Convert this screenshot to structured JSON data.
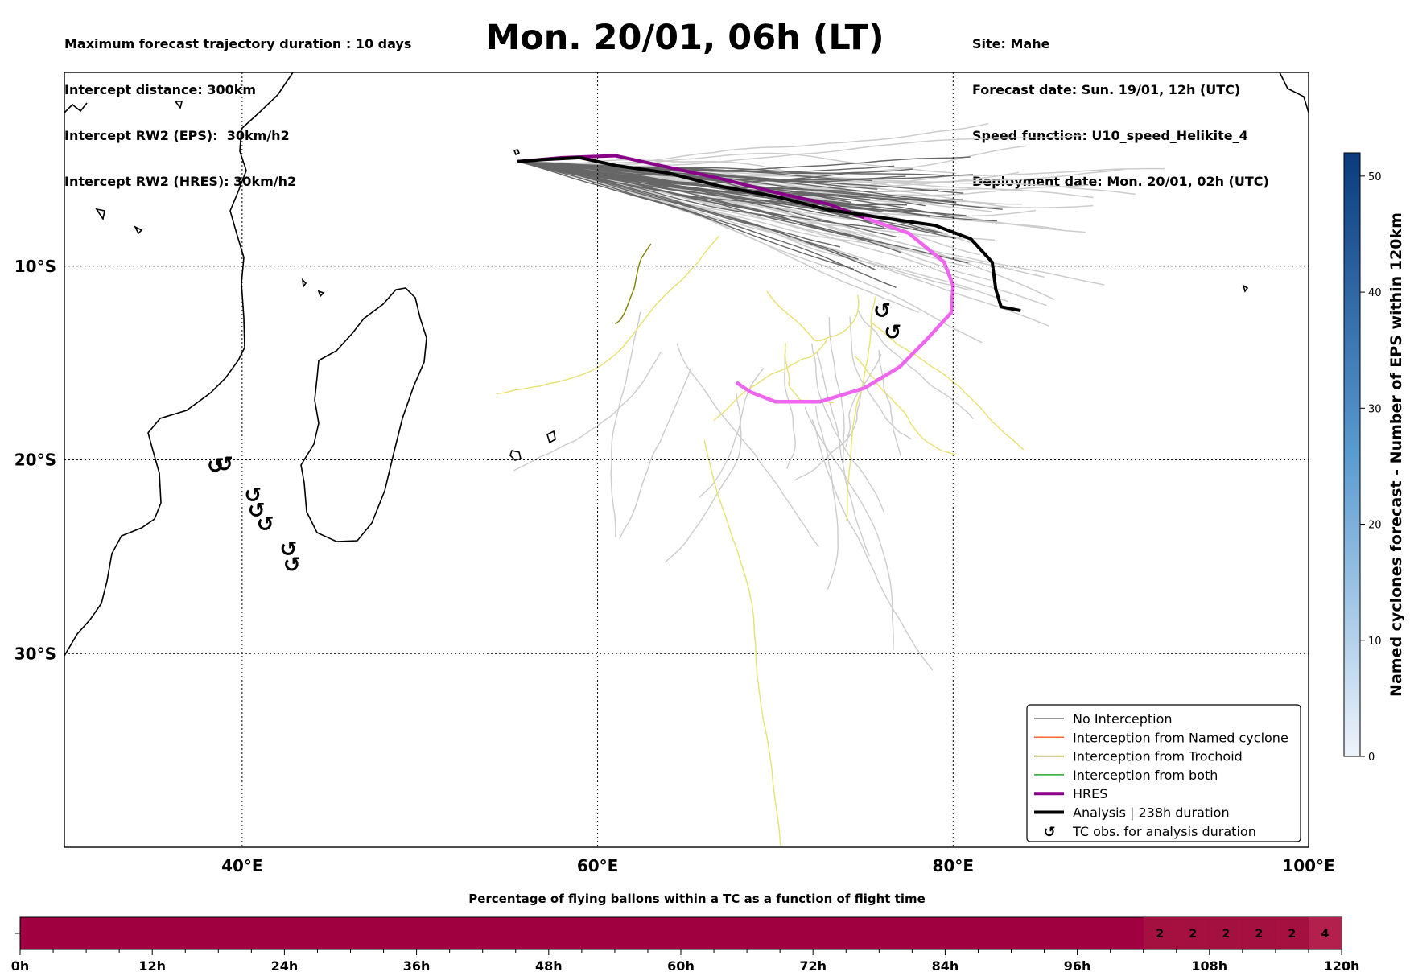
{
  "title": "Mon. 20/01, 06h (LT)",
  "header_left": [
    "Maximum forecast trajectory duration : 10 days",
    "Intercept distance: 300km",
    "Intercept RW2 (EPS):  30km/h2",
    "Intercept RW2 (HRES): 30km/h2"
  ],
  "header_right": [
    "Site: Mahe",
    "Forecast date: Sun. 19/01, 12h (UTC)",
    "Speed function: U10_speed_Helikite_4",
    "Deployment date: Mon. 20/01, 02h (UTC)"
  ],
  "map": {
    "extent": {
      "lon_min": 30,
      "lon_max": 100,
      "lat_max": 0,
      "lat_min": -40
    },
    "lon_ticks": [
      {
        "value": 40,
        "label": "40°E"
      },
      {
        "value": 60,
        "label": "60°E"
      },
      {
        "value": 80,
        "label": "80°E"
      },
      {
        "value": 100,
        "label": "100°E"
      }
    ],
    "lat_ticks": [
      {
        "value": -10,
        "label": "10°S"
      },
      {
        "value": -20,
        "label": "20°S"
      },
      {
        "value": -30,
        "label": "30°S"
      }
    ],
    "gridlines": true
  },
  "tracks": {
    "hres": {
      "color": "#880088",
      "points": [
        [
          55.5,
          -4.6
        ],
        [
          58,
          -4.4
        ],
        [
          61,
          -4.3
        ],
        [
          64,
          -4.9
        ],
        [
          67,
          -5.5
        ],
        [
          70,
          -6.2
        ],
        [
          73,
          -6.8
        ],
        [
          75,
          -7.5
        ]
      ]
    },
    "hres_late": {
      "color": "#ee66ee",
      "points": [
        [
          75,
          -7.5
        ],
        [
          77.5,
          -8.3
        ],
        [
          79.5,
          -9.8
        ],
        [
          80,
          -11
        ],
        [
          79.9,
          -12.4
        ],
        [
          78.5,
          -13.8
        ],
        [
          77,
          -15.2
        ],
        [
          75,
          -16.3
        ],
        [
          72.5,
          -17
        ],
        [
          70,
          -17
        ],
        [
          68.6,
          -16.5
        ],
        [
          67.8,
          -16
        ]
      ]
    },
    "analysis": {
      "color": "#000000",
      "points": [
        [
          55.5,
          -4.6
        ],
        [
          57,
          -4.5
        ],
        [
          59,
          -4.4
        ],
        [
          61,
          -4.8
        ],
        [
          64,
          -5.2
        ],
        [
          67,
          -5.9
        ],
        [
          70,
          -6.4
        ],
        [
          73,
          -7.1
        ],
        [
          76,
          -7.5
        ],
        [
          79,
          -7.9
        ],
        [
          81,
          -8.6
        ],
        [
          82.2,
          -9.8
        ],
        [
          82.4,
          -11.2
        ],
        [
          82.7,
          -12.1
        ],
        [
          83.8,
          -12.3
        ]
      ]
    }
  },
  "tc_obs": [
    [
      39,
      -20.2
    ],
    [
      38.5,
      -20.3
    ],
    [
      40.6,
      -21.8
    ],
    [
      40.8,
      -22.6
    ],
    [
      41.3,
      -23.3
    ],
    [
      42.6,
      -24.6
    ],
    [
      42.8,
      -25.4
    ],
    [
      76,
      -12.3
    ],
    [
      76.6,
      -13.4
    ]
  ],
  "legend": [
    {
      "label": "No Interception",
      "color": "#777777",
      "style": "thin"
    },
    {
      "label": "Interception from Named cyclone",
      "color": "#ff6633",
      "style": "thin"
    },
    {
      "label": "Interception from Trochoid",
      "color": "#808000",
      "style": "thin"
    },
    {
      "label": "Interception from both",
      "color": "#22aa22",
      "style": "thin"
    },
    {
      "label": "HRES",
      "color": "#880088",
      "style": "thick"
    },
    {
      "label": "Analysis | 238h duration",
      "color": "#000000",
      "style": "thick"
    },
    {
      "label": "TC obs. for analysis duration",
      "color": "#000000",
      "style": "symbol",
      "symbol": "↺"
    }
  ],
  "colorbar": {
    "label": "Named cyclones forecast - Number of EPS within 120km",
    "ticks": [
      0,
      10,
      20,
      30,
      40,
      50
    ],
    "max": 52,
    "color_low": "#eef3fb",
    "color_high": "#0b3b7d"
  },
  "bottom_bar": {
    "title": "Percentage of flying ballons within a TC as a function of flight time",
    "ticks": [
      "0h",
      "12h",
      "24h",
      "36h",
      "48h",
      "60h",
      "72h",
      "84h",
      "96h",
      "108h",
      "120h"
    ],
    "max_hours": 120,
    "base_color": "#a00040",
    "segments": [
      {
        "start": 102,
        "end": 105,
        "value": "2"
      },
      {
        "start": 105,
        "end": 108,
        "value": "2"
      },
      {
        "start": 108,
        "end": 111,
        "value": "2"
      },
      {
        "start": 111,
        "end": 114,
        "value": "2"
      },
      {
        "start": 114,
        "end": 117,
        "value": "2"
      },
      {
        "start": 117,
        "end": 120,
        "value": "4"
      }
    ]
  }
}
